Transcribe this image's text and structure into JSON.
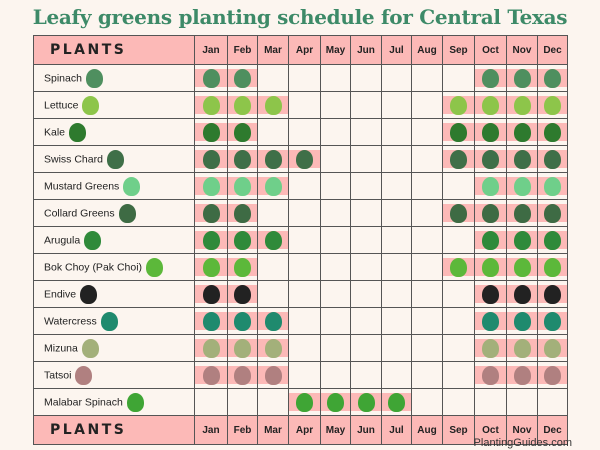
{
  "title": "Leafy greens planting schedule for Central Texas",
  "header": {
    "plants_label": "PLANTS",
    "months": [
      "Jan",
      "Feb",
      "Mar",
      "Apr",
      "May",
      "Jun",
      "Jul",
      "Aug",
      "Sep",
      "Oct",
      "Nov",
      "Dec"
    ]
  },
  "footer_header": {
    "plants_label": "PLANTS",
    "months": [
      "Jan",
      "Feb",
      "Mar",
      "Apr",
      "May",
      "Jun",
      "Jul",
      "Aug",
      "Sep",
      "Oct",
      "Nov",
      "Dec"
    ]
  },
  "plants": [
    {
      "name": "Spinach",
      "icon": "spinach-icon",
      "color": "#4f8f5f",
      "months": [
        1,
        1,
        0,
        0,
        0,
        0,
        0,
        0,
        0,
        1,
        1,
        1
      ]
    },
    {
      "name": "Lettuce",
      "icon": "lettuce-icon",
      "color": "#8dc54a",
      "months": [
        1,
        1,
        1,
        0,
        0,
        0,
        0,
        0,
        1,
        1,
        1,
        1
      ]
    },
    {
      "name": "Kale",
      "icon": "kale-icon",
      "color": "#2e7a2e",
      "months": [
        1,
        1,
        0,
        0,
        0,
        0,
        0,
        0,
        1,
        1,
        1,
        1
      ]
    },
    {
      "name": "Swiss Chard",
      "icon": "swiss-chard-icon",
      "color": "#3f6f48",
      "months": [
        1,
        1,
        1,
        1,
        0,
        0,
        0,
        0,
        1,
        1,
        1,
        1
      ]
    },
    {
      "name": "Mustard Greens",
      "icon": "mustard-greens-icon",
      "color": "#6fcf8a",
      "months": [
        1,
        1,
        1,
        0,
        0,
        0,
        0,
        0,
        0,
        1,
        1,
        1
      ]
    },
    {
      "name": "Collard Greens",
      "icon": "collard-greens-icon",
      "color": "#3e6b44",
      "months": [
        1,
        1,
        0,
        0,
        0,
        0,
        0,
        0,
        1,
        1,
        1,
        1
      ]
    },
    {
      "name": "Arugula",
      "icon": "arugula-icon",
      "color": "#2f8a3a",
      "months": [
        1,
        1,
        1,
        0,
        0,
        0,
        0,
        0,
        0,
        1,
        1,
        1
      ]
    },
    {
      "name": "Bok Choy (Pak Choi)",
      "icon": "bok-choy-icon",
      "color": "#5cb83a",
      "months": [
        1,
        1,
        0,
        0,
        0,
        0,
        0,
        0,
        1,
        1,
        1,
        1
      ]
    },
    {
      "name": "Endive",
      "icon": "endive-icon",
      "color": "#222222",
      "months": [
        1,
        1,
        0,
        0,
        0,
        0,
        0,
        0,
        0,
        1,
        1,
        1
      ]
    },
    {
      "name": "Watercress",
      "icon": "watercress-icon",
      "color": "#1f8a6e",
      "months": [
        1,
        1,
        1,
        0,
        0,
        0,
        0,
        0,
        0,
        1,
        1,
        1
      ]
    },
    {
      "name": "Mizuna",
      "icon": "mizuna-icon",
      "color": "#a3b07a",
      "months": [
        1,
        1,
        1,
        0,
        0,
        0,
        0,
        0,
        0,
        1,
        1,
        1
      ]
    },
    {
      "name": "Tatsoi",
      "icon": "tatsoi-icon",
      "color": "#b08080",
      "months": [
        1,
        1,
        1,
        0,
        0,
        0,
        0,
        0,
        0,
        1,
        1,
        1
      ]
    },
    {
      "name": "Malabar Spinach",
      "icon": "malabar-spinach-icon",
      "color": "#3fa535",
      "months": [
        0,
        0,
        0,
        1,
        1,
        1,
        1,
        0,
        0,
        0,
        0,
        0
      ]
    }
  ],
  "footer": "PlantingGuides.com",
  "colors": {
    "highlight": "#fcb9b7",
    "title": "#3d8a68",
    "background": "#fcf5ef",
    "grid": "#555555"
  }
}
